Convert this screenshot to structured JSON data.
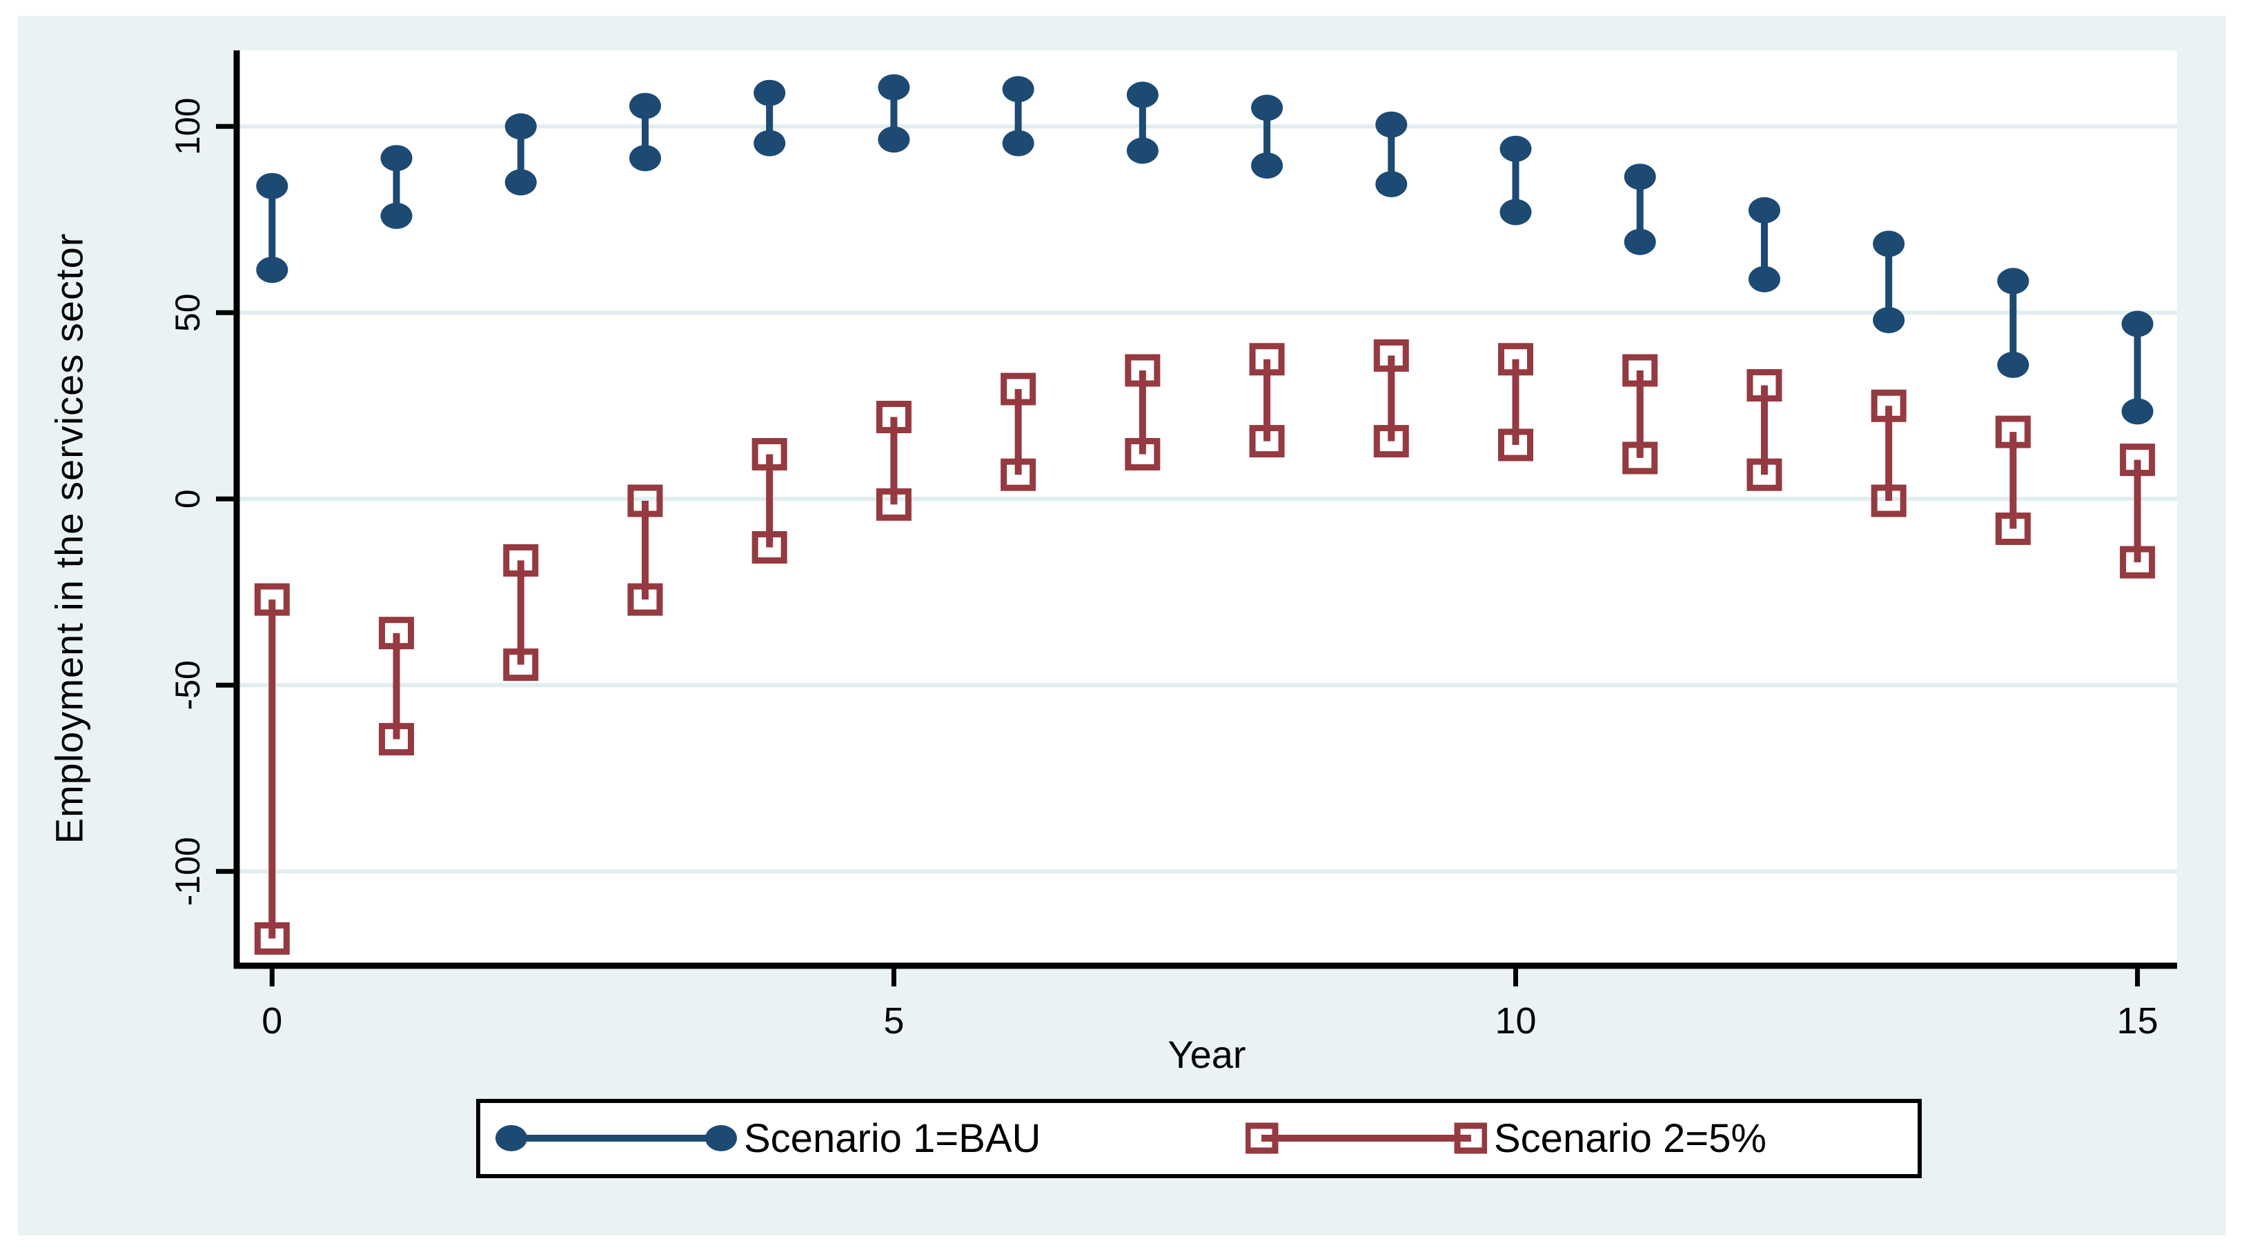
{
  "figure": {
    "background_color": "#ffffff",
    "region_color": "#eaf2f3",
    "plot_color": "#ffffff",
    "axis_color": "#000000",
    "gridline_color": "#e2edf0"
  },
  "chart_data": {
    "type": "rangebar",
    "title": "",
    "xlabel": "Year",
    "ylabel": "Employment in the services sector",
    "x": [
      0,
      1,
      2,
      3,
      4,
      5,
      6,
      7,
      8,
      9,
      10,
      11,
      12,
      13,
      14,
      15
    ],
    "xticks": [
      0,
      5,
      10,
      15
    ],
    "yticks": [
      100,
      50,
      0,
      -50,
      -100
    ],
    "xlim": [
      -0.28,
      15.32
    ],
    "ylim": [
      -125,
      120
    ],
    "grid": "on",
    "legend_position": "bottom",
    "series": [
      {
        "name": "Scenario 1=BAU",
        "color": "#1d4a73",
        "marker": "circle-filled",
        "high": [
          84,
          91.5,
          100,
          105.5,
          109,
          110.5,
          110,
          108.5,
          105,
          100.5,
          94,
          86.5,
          77.5,
          68.5,
          58.5,
          47
        ],
        "low": [
          61.5,
          76,
          85,
          91.5,
          95.5,
          96.5,
          95.5,
          93.5,
          89.5,
          84.5,
          77,
          69,
          59,
          48,
          36,
          23.5
        ]
      },
      {
        "name": "Scenario 2=5%",
        "color": "#943a40",
        "marker": "square-hollow",
        "high": [
          -27,
          -36,
          -16.5,
          -0.5,
          12,
          22,
          29.5,
          34.5,
          37.5,
          38.5,
          37.5,
          34.5,
          30.5,
          25,
          18,
          10.5
        ],
        "low": [
          -118,
          -64.5,
          -44.5,
          -27,
          -13,
          -1.5,
          6.5,
          12,
          15.5,
          15.5,
          14.5,
          11,
          6.5,
          -0.5,
          -8,
          -17
        ]
      }
    ]
  }
}
